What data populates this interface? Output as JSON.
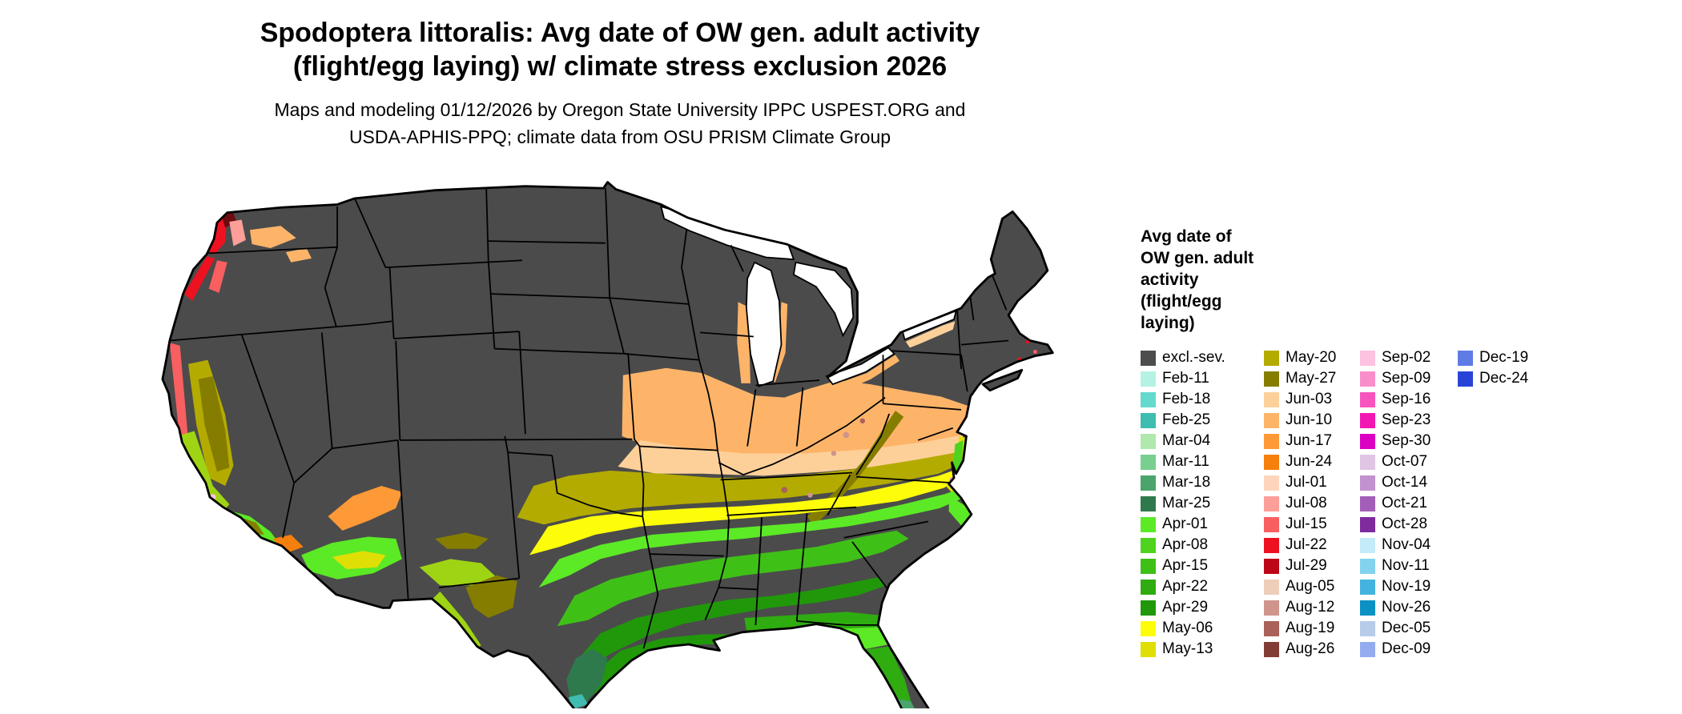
{
  "title": {
    "line1": "Spodoptera littoralis: Avg date of OW gen. adult activity",
    "line2": "(flight/egg laying) w/ climate stress exclusion 2026"
  },
  "subtitle": {
    "line1": "Maps and modeling 01/12/2026 by Oregon State University IPPC USPEST.ORG and",
    "line2": "USDA-APHIS-PPQ; climate data from OSU PRISM Climate Group"
  },
  "map": {
    "region": "Contiguous United States",
    "excluded_class_label": "excl.-sev.",
    "excluded_color": "#4b4b4b",
    "boundary_color": "#000000"
  },
  "legend": {
    "title_lines": [
      "Avg date of",
      "OW gen. adult",
      "activity",
      "(flight/egg",
      "laying)"
    ],
    "columns": [
      {
        "entries": [
          {
            "label": "excl.-sev.",
            "color": "#4d4d4d"
          },
          {
            "label": "Feb-11",
            "color": "#b6f2e3"
          },
          {
            "label": "Feb-18",
            "color": "#64d9cd"
          },
          {
            "label": "Feb-25",
            "color": "#3ebdb0"
          },
          {
            "label": "Mar-04",
            "color": "#afe9ad"
          },
          {
            "label": "Mar-11",
            "color": "#78cf90"
          },
          {
            "label": "Mar-18",
            "color": "#4aa46b"
          },
          {
            "label": "Mar-25",
            "color": "#2e7a4d"
          },
          {
            "label": "Apr-01",
            "color": "#5ce926"
          },
          {
            "label": "Apr-08",
            "color": "#4ed41e"
          },
          {
            "label": "Apr-15",
            "color": "#3fc017"
          },
          {
            "label": "Apr-22",
            "color": "#2fac10"
          },
          {
            "label": "Apr-29",
            "color": "#20980a"
          },
          {
            "label": "May-06",
            "color": "#fdfd0a"
          },
          {
            "label": "May-13",
            "color": "#dfdf06"
          }
        ]
      },
      {
        "entries": [
          {
            "label": "May-20",
            "color": "#b3ab00"
          },
          {
            "label": "May-27",
            "color": "#857d00"
          },
          {
            "label": "Jun-03",
            "color": "#fdd09a"
          },
          {
            "label": "Jun-10",
            "color": "#fdb469"
          },
          {
            "label": "Jun-17",
            "color": "#fd9936"
          },
          {
            "label": "Jun-24",
            "color": "#f5800e"
          },
          {
            "label": "Jul-01",
            "color": "#fdd5bd"
          },
          {
            "label": "Jul-08",
            "color": "#fb9f98"
          },
          {
            "label": "Jul-15",
            "color": "#f75f60"
          },
          {
            "label": "Jul-22",
            "color": "#ee1120"
          },
          {
            "label": "Jul-29",
            "color": "#bd0718"
          },
          {
            "label": "Aug-05",
            "color": "#eeceba"
          },
          {
            "label": "Aug-12",
            "color": "#cf948b"
          },
          {
            "label": "Aug-19",
            "color": "#a9615a"
          },
          {
            "label": "Aug-26",
            "color": "#833c35"
          }
        ]
      },
      {
        "entries": [
          {
            "label": "Sep-02",
            "color": "#fcc2df"
          },
          {
            "label": "Sep-09",
            "color": "#f98fca"
          },
          {
            "label": "Sep-16",
            "color": "#f755bd"
          },
          {
            "label": "Sep-23",
            "color": "#f317b2"
          },
          {
            "label": "Sep-30",
            "color": "#dc00c3"
          },
          {
            "label": "Oct-07",
            "color": "#e0c5e5"
          },
          {
            "label": "Oct-14",
            "color": "#c292cf"
          },
          {
            "label": "Oct-21",
            "color": "#a35eb9"
          },
          {
            "label": "Oct-28",
            "color": "#7e2b9d"
          },
          {
            "label": "Nov-04",
            "color": "#c4ebf8"
          },
          {
            "label": "Nov-11",
            "color": "#83d3ee"
          },
          {
            "label": "Nov-19",
            "color": "#42b4de"
          },
          {
            "label": "Nov-26",
            "color": "#0b91c3"
          },
          {
            "label": "Dec-05",
            "color": "#b6cce9"
          },
          {
            "label": "Dec-09",
            "color": "#94acef"
          }
        ]
      },
      {
        "entries": [
          {
            "label": "Dec-19",
            "color": "#5e7be6"
          },
          {
            "label": "Dec-24",
            "color": "#2844d7"
          }
        ]
      }
    ]
  }
}
